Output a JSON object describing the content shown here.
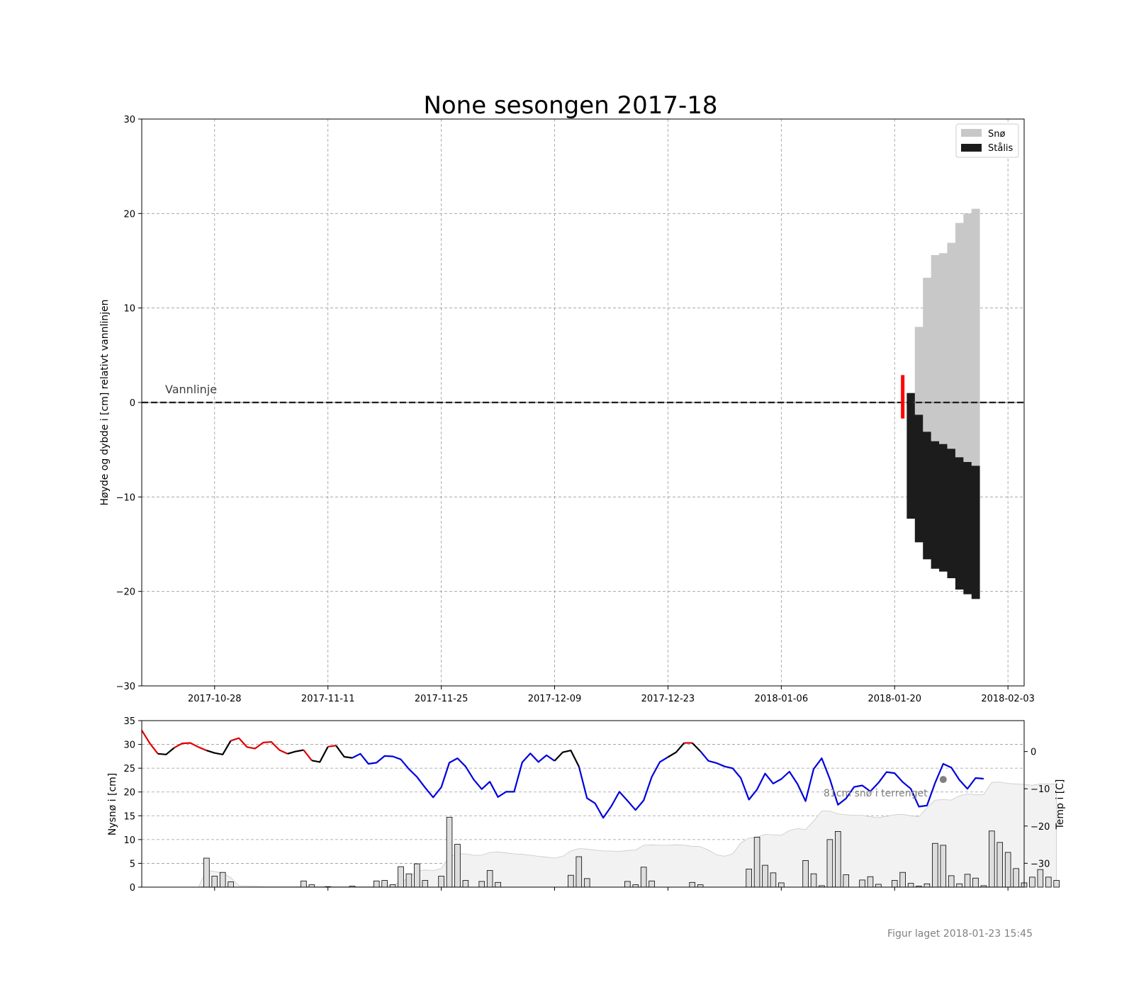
{
  "title": "None sesongen 2017-18",
  "footer": "Figur laget 2018-01-23 15:45",
  "chart_data": [
    {
      "type": "bar",
      "panel": "ice",
      "ylabel": "Høyde og dybde i [cm] relativt vannlinjen",
      "ylim": [
        -30,
        30
      ],
      "yticks": [
        -30,
        -20,
        -10,
        0,
        10,
        20,
        30
      ],
      "ytick_labels": [
        "−30",
        "−20",
        "−10",
        "0",
        "10",
        "20",
        "30"
      ],
      "xlim": [
        "2017-10-19",
        "2018-02-05"
      ],
      "xticks": [
        "2017-10-28",
        "2017-11-11",
        "2017-11-25",
        "2017-12-09",
        "2017-12-23",
        "2018-01-06",
        "2018-01-20",
        "2018-02-03"
      ],
      "grid": true,
      "legend_position": "top-right",
      "legend": [
        {
          "label": "Snø",
          "color": "#c8c8c8"
        },
        {
          "label": "Stålis",
          "color": "#1c1c1c"
        }
      ],
      "waterline": {
        "label": "Vannlinje",
        "y": 0
      },
      "measurement_marker": {
        "date": "2018-01-21",
        "y_bottom": -1.7,
        "y_top": 2.9,
        "color": "#ff0000"
      },
      "columns": [
        {
          "date": "2018-01-22",
          "ice_bottom": -12.3,
          "ice_top": 1.0,
          "snow_top": 1.0
        },
        {
          "date": "2018-01-23",
          "ice_bottom": -14.8,
          "ice_top": -1.3,
          "snow_top": 8.0
        },
        {
          "date": "2018-01-24",
          "ice_bottom": -16.6,
          "ice_top": -3.1,
          "snow_top": 13.2
        },
        {
          "date": "2018-01-25",
          "ice_bottom": -17.6,
          "ice_top": -4.1,
          "snow_top": 15.6
        },
        {
          "date": "2018-01-26",
          "ice_bottom": -17.9,
          "ice_top": -4.4,
          "snow_top": 15.8
        },
        {
          "date": "2018-01-27",
          "ice_bottom": -18.6,
          "ice_top": -4.9,
          "snow_top": 16.9
        },
        {
          "date": "2018-01-28",
          "ice_bottom": -19.8,
          "ice_top": -5.8,
          "snow_top": 19.0
        },
        {
          "date": "2018-01-29",
          "ice_bottom": -20.3,
          "ice_top": -6.3,
          "snow_top": 20.0
        },
        {
          "date": "2018-01-30",
          "ice_bottom": -20.8,
          "ice_top": -6.7,
          "snow_top": 20.5
        }
      ]
    },
    {
      "type": "bar",
      "panel": "weather",
      "ylabel": "Nysnø i [cm]",
      "ylabel_right": "Temp i [C]",
      "ylim": [
        0,
        35
      ],
      "yticks": [
        0,
        5,
        10,
        15,
        20,
        25,
        30,
        35
      ],
      "ylim_right": [
        -36.4,
        8.3
      ],
      "yticks_right": [
        -30,
        -20,
        -10,
        0
      ],
      "ytick_labels_right": [
        "−30",
        "−20",
        "−10",
        "0"
      ],
      "grid": true,
      "annotation": {
        "text": "81cm snø i terrenget",
        "date": "2018-01-26",
        "temp": -7.5
      },
      "start_date": "2017-10-19",
      "new_snow_cm": [
        0,
        0,
        0,
        0,
        0,
        0,
        0,
        0,
        6.1,
        2.3,
        3.1,
        1.1,
        0,
        0,
        0,
        0,
        0,
        0,
        0,
        0,
        1.3,
        0.5,
        0,
        0.1,
        0,
        0,
        0.2,
        0,
        0,
        1.3,
        1.4,
        0.5,
        4.3,
        2.8,
        4.9,
        1.4,
        0,
        2.3,
        14.7,
        9.0,
        1.4,
        0,
        1.2,
        3.5,
        1.0,
        0,
        0,
        0,
        0,
        0,
        0,
        0,
        0,
        2.5,
        6.4,
        1.8,
        0,
        0,
        0,
        0,
        1.2,
        0.5,
        4.2,
        1.3,
        0,
        0,
        0,
        0,
        1.0,
        0.5,
        0,
        0,
        0,
        0,
        0,
        3.8,
        10.5,
        4.6,
        3.0,
        0.9,
        0,
        0,
        5.6,
        2.8,
        0.3,
        10.0,
        11.7,
        2.6,
        0,
        1.5,
        2.2,
        0.6,
        0,
        1.4,
        3.1,
        0.8,
        0.2,
        0.7,
        9.2,
        8.8,
        2.4,
        0.7,
        2.7,
        1.9,
        0.3,
        11.8,
        9.4,
        7.3,
        3.9,
        0.9,
        2.1,
        3.7,
        2.1,
        1.4
      ],
      "snow_depth_cm": [
        0,
        0,
        0,
        0,
        0,
        0,
        0,
        0,
        3.5,
        3.3,
        2.9,
        2.0,
        0.3,
        0.2,
        0.2,
        0.1,
        0.1,
        0.1,
        0.1,
        0.1,
        0.1,
        0.1,
        0.1,
        0.1,
        0.1,
        0.1,
        0.1,
        0.1,
        0.1,
        0.1,
        0.1,
        0.5,
        1.0,
        2.0,
        3.4,
        3.6,
        3.5,
        3.9,
        6.4,
        7.0,
        7.0,
        6.7,
        6.7,
        7.3,
        7.4,
        7.2,
        7.0,
        6.9,
        6.7,
        6.5,
        6.3,
        6.1,
        6.5,
        7.6,
        8.1,
        8.0,
        7.8,
        7.6,
        7.6,
        7.5,
        7.7,
        7.8,
        8.8,
        8.9,
        8.8,
        8.8,
        8.9,
        8.8,
        8.6,
        8.5,
        7.8,
        6.8,
        6.5,
        7.0,
        9.3,
        10.3,
        10.5,
        11.1,
        11.0,
        10.9,
        11.9,
        12.3,
        12.1,
        13.9,
        16.0,
        16.0,
        15.4,
        15.2,
        15.1,
        15.1,
        14.8,
        14.6,
        14.9,
        15.2,
        15.3,
        15.0,
        14.8,
        16.7,
        18.3,
        18.4,
        18.3,
        19.2,
        19.6,
        19.4,
        19.5,
        22.0,
        22.1,
        21.8,
        21.7,
        21.6,
        21.4,
        21.7,
        21.7,
        21.7
      ],
      "temperature_c": [
        5.7,
        2.2,
        -0.6,
        -0.8,
        1.0,
        2.2,
        2.3,
        1.2,
        0.3,
        -0.4,
        -0.8,
        2.9,
        3.6,
        1.2,
        0.8,
        2.4,
        2.6,
        0.4,
        -0.6,
        0,
        0.4,
        -2.4,
        -2.8,
        1.3,
        1.6,
        -1.4,
        -1.7,
        -0.6,
        -3.3,
        -3.0,
        -1.2,
        -1.3,
        -2.1,
        -4.7,
        -6.8,
        -9.7,
        -12.3,
        -9.6,
        -3.0,
        -1.8,
        -4.0,
        -7.5,
        -10.1,
        -8.1,
        -12.2,
        -10.8,
        -10.8,
        -2.9,
        -0.5,
        -2.8,
        -1.0,
        -2.5,
        -0.2,
        0.3,
        -4.0,
        -12.5,
        -13.9,
        -17.8,
        -14.7,
        -10.8,
        -13.2,
        -15.7,
        -13.1,
        -6.8,
        -2.8,
        -1.5,
        -0.2,
        2.3,
        2.3,
        0.1,
        -2.5,
        -3.1,
        -4.0,
        -4.5,
        -7.1,
        -12.9,
        -10.2,
        -5.9,
        -8.6,
        -7.4,
        -5.4,
        -8.7,
        -13.3,
        -4.7,
        -1.8,
        -7.4,
        -14.3,
        -12.6,
        -9.5,
        -9.1,
        -10.7,
        -8.4,
        -5.5,
        -5.8,
        -8.2,
        -10.0,
        -14.8,
        -14.5,
        -8.4,
        -3.3,
        -4.3,
        -7.6,
        -10.0,
        -7.1,
        -7.3
      ],
      "temperature_segments": [
        {
          "from": 0,
          "to": 2,
          "color": "#dd0000"
        },
        {
          "from": 2,
          "to": 4,
          "color": "#000000"
        },
        {
          "from": 4,
          "to": 8,
          "color": "#dd0000"
        },
        {
          "from": 8,
          "to": 11,
          "color": "#000000"
        },
        {
          "from": 11,
          "to": 18,
          "color": "#dd0000"
        },
        {
          "from": 18,
          "to": 20,
          "color": "#000000"
        },
        {
          "from": 20,
          "to": 21,
          "color": "#dd0000"
        },
        {
          "from": 21,
          "to": 23,
          "color": "#000000"
        },
        {
          "from": 23,
          "to": 24,
          "color": "#dd0000"
        },
        {
          "from": 24,
          "to": 26,
          "color": "#000000"
        },
        {
          "from": 26,
          "to": 51,
          "color": "#0000dd"
        },
        {
          "from": 51,
          "to": 54,
          "color": "#000000"
        },
        {
          "from": 54,
          "to": 65,
          "color": "#0000dd"
        },
        {
          "from": 65,
          "to": 67,
          "color": "#000000"
        },
        {
          "from": 67,
          "to": 68,
          "color": "#dd0000"
        },
        {
          "from": 68,
          "to": 69,
          "color": "#000000"
        },
        {
          "from": 69,
          "to": 106,
          "color": "#0000dd"
        }
      ],
      "colors": {
        "new_snow": "#dddddd",
        "snow_depth": "#f2f2f2",
        "annotation": "#808080"
      }
    }
  ]
}
